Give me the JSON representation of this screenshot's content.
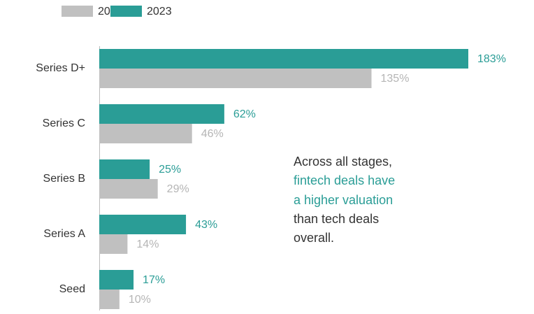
{
  "chart_data": {
    "type": "bar",
    "orientation": "horizontal",
    "categories": [
      "Series D+",
      "Series C",
      "Series B",
      "Series A",
      "Seed"
    ],
    "series": [
      {
        "name": "2021",
        "color": "#c0c0c0",
        "label_color": "#b5b5b5",
        "values": [
          135,
          46,
          29,
          14,
          10
        ],
        "value_labels": [
          "135%",
          "46%",
          "29%",
          "14%",
          "10%"
        ]
      },
      {
        "name": "2023",
        "color": "#2a9d96",
        "label_color": "#2a9d96",
        "values": [
          183,
          62,
          25,
          43,
          17
        ],
        "value_labels": [
          "183%",
          "62%",
          "25%",
          "43%",
          "17%"
        ]
      }
    ],
    "annotation": [
      "Across all stages,",
      "fintech deals have",
      "a higher valuation",
      "than tech deals",
      "overall."
    ],
    "legend": "top-left"
  }
}
